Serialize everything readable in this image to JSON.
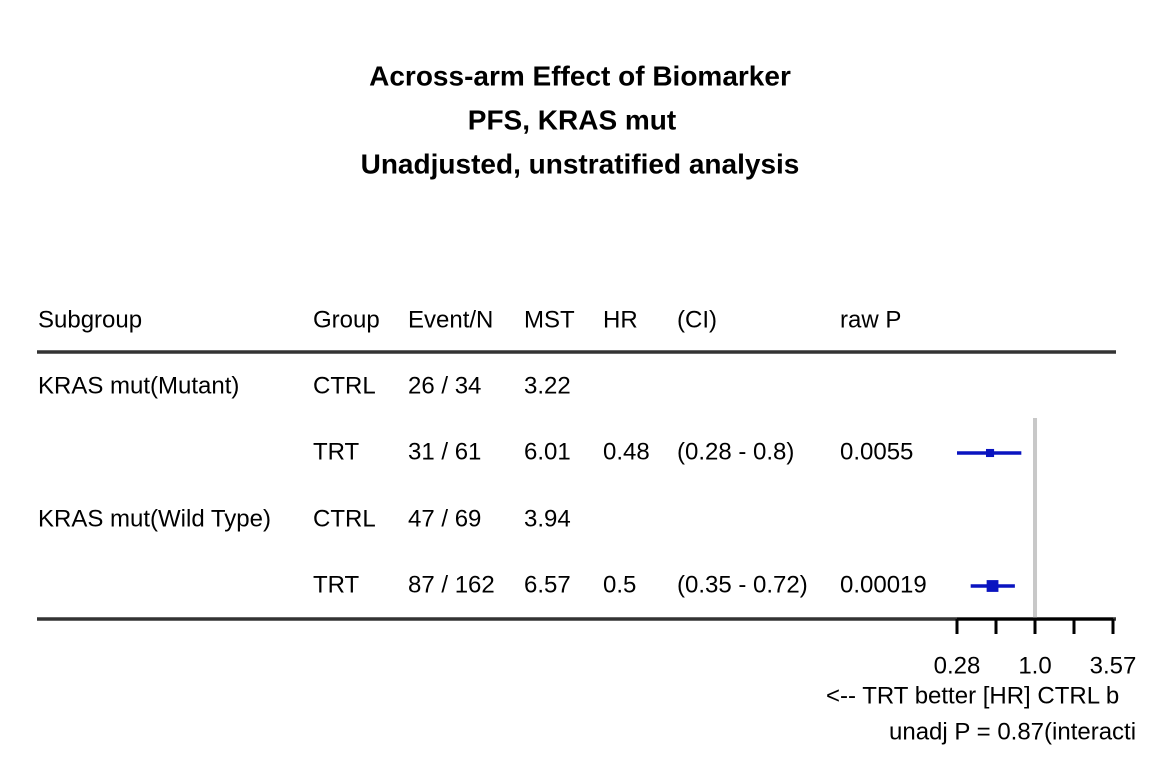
{
  "chart_data": {
    "type": "forest",
    "title_lines": [
      "Across-arm Effect of Biomarker",
      "PFS, KRAS mut",
      "Unadjusted, unstratified analysis"
    ],
    "columns": [
      "Subgroup",
      "Group",
      "Event/N",
      "MST",
      "HR",
      "(CI)",
      "raw P"
    ],
    "rows": [
      {
        "subgroup": "KRAS mut(Mutant)",
        "group": "CTRL",
        "events": "26 / 34",
        "mst": 3.22
      },
      {
        "group": "TRT",
        "events": "31 / 61",
        "mst": 6.01,
        "hr": 0.48,
        "ci_label": "(0.28 - 0.8)",
        "ci_low": 0.28,
        "ci_high": 0.8,
        "p": 0.0055
      },
      {
        "subgroup": "KRAS mut(Wild Type)",
        "group": "CTRL",
        "events": "47 / 69",
        "mst": 3.94
      },
      {
        "group": "TRT",
        "events": "87 / 162",
        "mst": 6.57,
        "hr": 0.5,
        "ci_label": "(0.35 - 0.72)",
        "ci_low": 0.35,
        "ci_high": 0.72,
        "p": 0.00019
      }
    ],
    "color": "#0a14c0",
    "ref_line": 1,
    "log_scale": true,
    "xlim": [
      0.28,
      3.57
    ],
    "xticks": [
      0.28,
      {
        "value": 1,
        "label": "1.0"
      },
      3.57
    ],
    "minor_xticks": [
      0.529,
      1.889
    ],
    "xlabel": "<--  TRT better [HR]  CTRL b",
    "interaction_note": "unadj P = 0.87(interacti"
  }
}
